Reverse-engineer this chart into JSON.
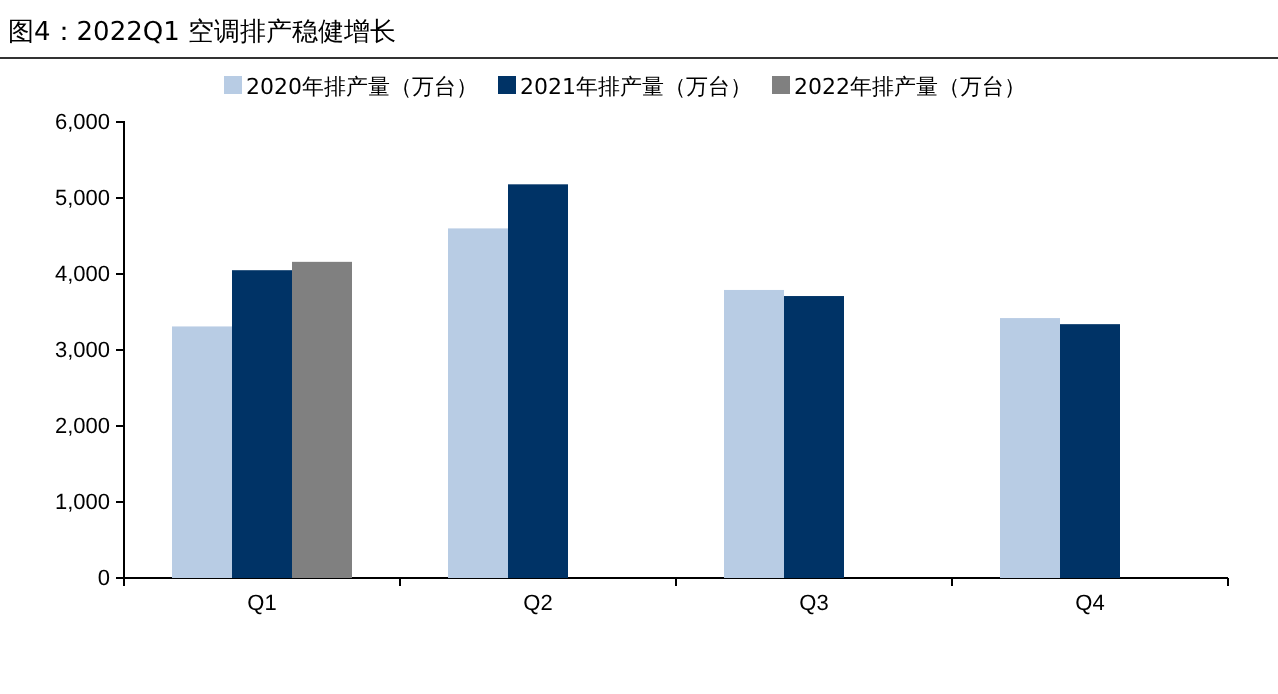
{
  "chart_data": {
    "type": "bar",
    "title": "图4：2022Q1 空调排产稳健增长",
    "categories": [
      "Q1",
      "Q2",
      "Q3",
      "Q4"
    ],
    "series": [
      {
        "name": "2020年排产量（万台）",
        "color": "#b8cce4",
        "values": [
          3310,
          4600,
          3790,
          3420
        ]
      },
      {
        "name": "2021年排产量（万台）",
        "color": "#003366",
        "values": [
          4050,
          5180,
          3710,
          3340
        ]
      },
      {
        "name": "2022年排产量（万台）",
        "color": "#808080",
        "values": [
          4160,
          null,
          null,
          null
        ]
      }
    ],
    "ylim": [
      0,
      6000
    ],
    "yticks": [
      {
        "value": 0,
        "label": "0"
      },
      {
        "value": 1000,
        "label": "1,000"
      },
      {
        "value": 2000,
        "label": "2,000"
      },
      {
        "value": 3000,
        "label": "3,000"
      },
      {
        "value": 4000,
        "label": "4,000"
      },
      {
        "value": 5000,
        "label": "5,000"
      },
      {
        "value": 6000,
        "label": "6,000"
      }
    ],
    "grid": false,
    "legend": "top"
  }
}
